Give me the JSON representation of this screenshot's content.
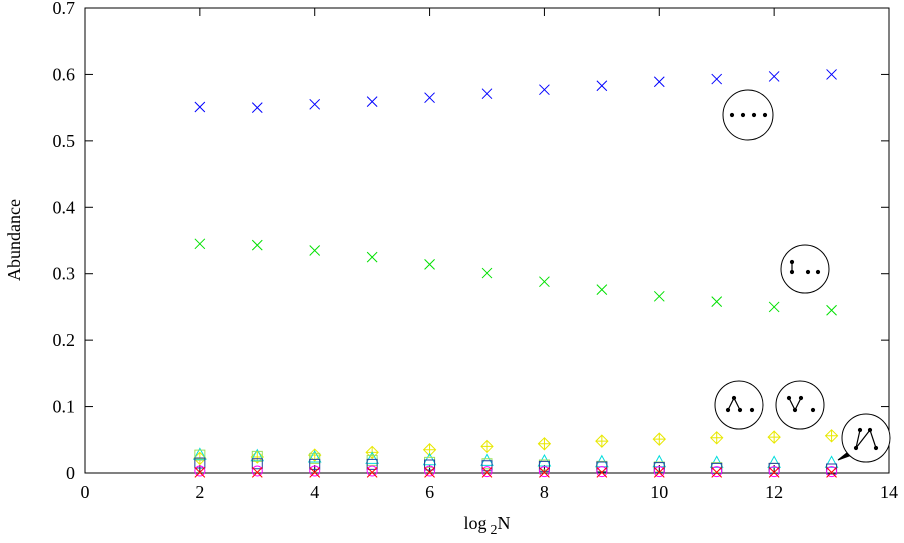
{
  "chart_data": {
    "type": "scatter",
    "x_label": [
      "log",
      "2",
      "N"
    ],
    "y_label": "Abundance",
    "xlim": [
      0,
      14
    ],
    "xticks": [
      0,
      2,
      4,
      6,
      8,
      10,
      12,
      14
    ],
    "ylim": [
      0,
      0.7
    ],
    "yticks": [
      0,
      0.1,
      0.2,
      0.3,
      0.4,
      0.5,
      0.6,
      0.7
    ],
    "grid": false,
    "x": [
      2,
      3,
      4,
      5,
      6,
      7,
      8,
      9,
      10,
      11,
      12,
      13
    ],
    "series": [
      {
        "color": "#0000ff",
        "marker": "x",
        "values": [
          0.551,
          0.55,
          0.555,
          0.559,
          0.565,
          0.571,
          0.577,
          0.583,
          0.589,
          0.593,
          0.597,
          0.6
        ]
      },
      {
        "color": "#00e000",
        "marker": "x",
        "values": [
          0.345,
          0.343,
          0.335,
          0.325,
          0.314,
          0.301,
          0.288,
          0.276,
          0.266,
          0.258,
          0.25,
          0.245
        ]
      },
      {
        "color": "#e8e800",
        "marker": "diamond-plus",
        "values": [
          0.022,
          0.024,
          0.027,
          0.031,
          0.035,
          0.04,
          0.044,
          0.048,
          0.051,
          0.053,
          0.054,
          0.056
        ]
      },
      {
        "color": "#00dddd",
        "marker": "triangle",
        "values": [
          0.028,
          0.026,
          0.024,
          0.022,
          0.02,
          0.019,
          0.018,
          0.017,
          0.017,
          0.016,
          0.016,
          0.016
        ]
      },
      {
        "color": "#9ee05a",
        "marker": "square",
        "values": [
          0.027,
          0.025,
          0.022,
          0.019,
          0.016,
          0.014,
          0.012,
          0.01,
          0.009,
          0.008,
          0.007,
          0.006
        ]
      },
      {
        "color": "#2040a0",
        "marker": "square",
        "values": [
          0.015,
          0.014,
          0.013,
          0.013,
          0.012,
          0.011,
          0.01,
          0.009,
          0.008,
          0.007,
          0.007,
          0.006
        ]
      },
      {
        "color": "#ff00ff",
        "marker": "circle",
        "values": [
          0.003,
          0.003,
          0.003,
          0.003,
          0.003,
          0.002,
          0.002,
          0.002,
          0.002,
          0.002,
          0.002,
          0.002
        ]
      },
      {
        "color": "#ff0000",
        "marker": "x",
        "values": [
          0.001,
          0.001,
          0.001,
          0.001,
          0.001,
          0.001,
          0.001,
          0.001,
          0.001,
          0.001,
          0.001,
          0.001
        ]
      }
    ]
  }
}
